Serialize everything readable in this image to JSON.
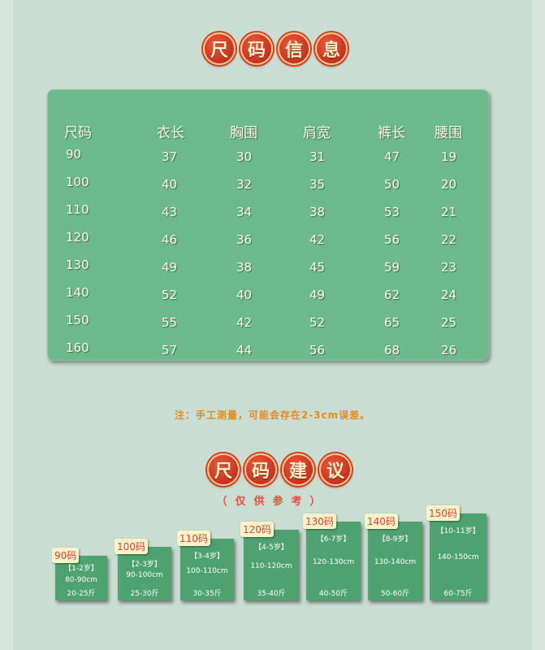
{
  "title1": [
    "尺",
    "码",
    "信",
    "息"
  ],
  "table": {
    "headers": [
      "尺码",
      "衣长",
      "胸围",
      "肩宽",
      "裤长",
      "腰围"
    ],
    "rows": [
      [
        "90",
        "37",
        "30",
        "31",
        "47",
        "19"
      ],
      [
        "100",
        "40",
        "32",
        "35",
        "50",
        "20"
      ],
      [
        "110",
        "43",
        "34",
        "38",
        "53",
        "21"
      ],
      [
        "120",
        "46",
        "36",
        "42",
        "56",
        "22"
      ],
      [
        "130",
        "49",
        "38",
        "45",
        "59",
        "23"
      ],
      [
        "140",
        "52",
        "40",
        "49",
        "62",
        "24"
      ],
      [
        "150",
        "55",
        "42",
        "52",
        "65",
        "25"
      ],
      [
        "160",
        "57",
        "44",
        "56",
        "68",
        "26"
      ]
    ]
  },
  "note": "注：手工测量，可能会存在2-3cm误差。",
  "title2": [
    "尺",
    "码",
    "建",
    "议"
  ],
  "subtitle": "（仅供参考）",
  "cards": [
    {
      "size": "90码",
      "age": "【1-2岁】",
      "height": "80-90cm",
      "weight": "20-25斤"
    },
    {
      "size": "100码",
      "age": "【2-3岁】",
      "height": "90-100cm",
      "weight": "25-30斤"
    },
    {
      "size": "110码",
      "age": "【3-4岁】",
      "height": "100-110cm",
      "weight": "30-35斤"
    },
    {
      "size": "120码",
      "age": "【4-5岁】",
      "height": "110-120cm",
      "weight": "35-40斤"
    },
    {
      "size": "130码",
      "age": "【6-7岁】",
      "height": "120-130cm",
      "weight": "40-50斤"
    },
    {
      "size": "140码",
      "age": "【8-9岁】",
      "height": "130-140cm",
      "weight": "50-60斤"
    },
    {
      "size": "150码",
      "age": "【10-11岁】",
      "height": "140-150cm",
      "weight": "60-75斤"
    }
  ]
}
